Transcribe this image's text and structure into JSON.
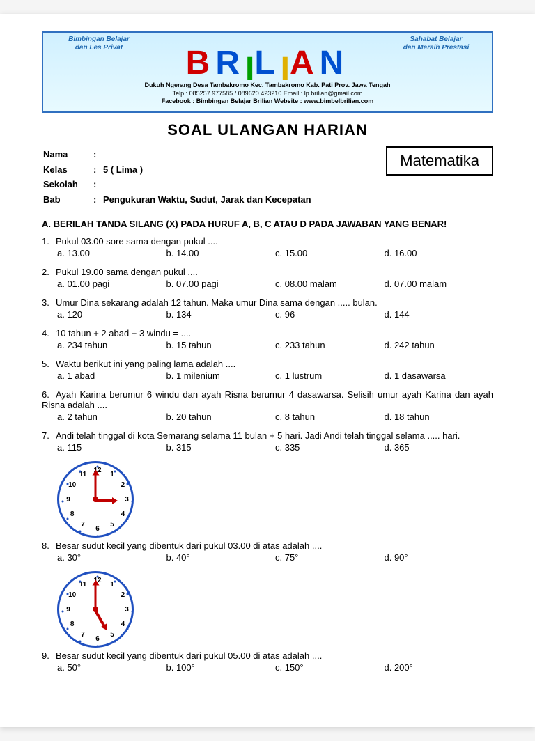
{
  "banner": {
    "tagline_left_l1": "Bimbingan Belajar",
    "tagline_left_l2": "dan Les Privat",
    "tagline_right_l1": "Sahabat Belajar",
    "tagline_right_l2": "dan Meraih Prestasi",
    "logo_letters": [
      "B",
      "R",
      "I",
      "L",
      "I",
      "A",
      "N"
    ],
    "logo_colors": [
      "#d00000",
      "#0050d0",
      "#00a000",
      "#0050d0",
      "#e0b000",
      "#d00000",
      "#0050d0"
    ],
    "addr": "Dukuh Ngerang Desa Tambakromo Kec. Tambakromo Kab. Pati Prov. Jawa Tengah",
    "contact": "Telp : 085257 977585 / 089620 423210    Email : lp.brilian@gmail.com",
    "web": "Facebook : Bimbingan Belajar Brilian    Website : www.bimbelbrilian.com"
  },
  "title": "SOAL ULANGAN HARIAN",
  "meta": {
    "nama_label": "Nama",
    "nama": "",
    "kelas_label": "Kelas",
    "kelas": "5 ( Lima )",
    "sekolah_label": "Sekolah",
    "sekolah": "",
    "bab_label": "Bab",
    "bab": "Pengukuran Waktu, Sudut, Jarak dan Kecepatan"
  },
  "subject": "Matematika",
  "section_a": "A. BERILAH TANDA SILANG (X) PADA HURUF A, B, C ATAU D PADA JAWABAN YANG BENAR!",
  "questions": [
    {
      "n": "1.",
      "t": "Pukul 03.00 sore sama dengan pukul ....",
      "a": "a. 13.00",
      "b": "b. 14.00",
      "c": "c. 15.00",
      "d": "d. 16.00"
    },
    {
      "n": "2.",
      "t": "Pukul 19.00 sama dengan pukul ....",
      "a": "a. 01.00  pagi",
      "b": "b. 07.00 pagi",
      "c": "c. 08.00 malam",
      "d": "d. 07.00 malam"
    },
    {
      "n": "3.",
      "t": "Umur Dina sekarang adalah 12 tahun. Maka umur Dina sama dengan ..... bulan.",
      "a": "a. 120",
      "b": "b. 134",
      "c": "c. 96",
      "d": "d. 144"
    },
    {
      "n": "4.",
      "t": "10 tahun + 2 abad + 3 windu = ....",
      "a": "a. 234 tahun",
      "b": "b. 15 tahun",
      "c": "c. 233 tahun",
      "d": "d. 242 tahun"
    },
    {
      "n": "5.",
      "t": "Waktu berikut ini yang paling lama adalah ....",
      "a": "a. 1 abad",
      "b": "b. 1 milenium",
      "c": "c. 1 lustrum",
      "d": "d. 1 dasawarsa"
    },
    {
      "n": "6.",
      "t": "Ayah Karina berumur 6 windu dan ayah Risna berumur 4 dasawarsa. Selisih umur ayah Karina dan ayah Risna adalah ....",
      "a": "a. 2 tahun",
      "b": "b. 20 tahun",
      "c": "c. 8 tahun",
      "d": "d. 18 tahun"
    },
    {
      "n": "7.",
      "t": "Andi telah tinggal di kota Semarang selama 11 bulan + 5 hari. Jadi Andi telah tinggal selama ..... hari.",
      "a": "a. 115",
      "b": "b. 315",
      "c": "c. 335",
      "d": "d. 365"
    },
    {
      "n": "8.",
      "t": "Besar sudut kecil yang dibentuk dari pukul 03.00 di atas adalah ....",
      "a": "a. 30°",
      "b": "b. 40°",
      "c": "c. 75°",
      "d": "d. 90°",
      "clock": {
        "hour": 3,
        "min": 0
      }
    },
    {
      "n": "9.",
      "t": "Besar sudut kecil yang dibentuk dari pukul 05.00 di atas adalah ....",
      "a": "a. 50°",
      "b": "b. 100°",
      "c": "c. 150°",
      "d": "d. 200°",
      "clock": {
        "hour": 5,
        "min": 0
      }
    }
  ],
  "clock_style": {
    "border_color": "#2050c0",
    "hand_color": "#c00000",
    "num_radius": 42,
    "tick_radius": 50,
    "hour_len": 26,
    "min_len": 38
  }
}
